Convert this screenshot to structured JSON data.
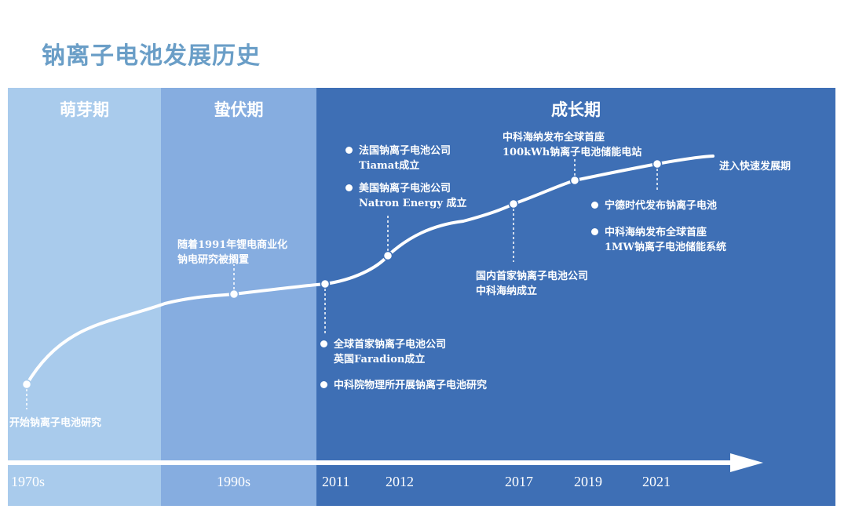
{
  "title": "钠离子电池发展历史",
  "periods": [
    {
      "name": "萌芽期"
    },
    {
      "name": "蛰伏期"
    },
    {
      "name": "成长期"
    }
  ],
  "axis_labels": [
    "1970s",
    "1990s",
    "2011",
    "2012",
    "2017",
    "2019",
    "2021"
  ],
  "events": {
    "e1970s": [
      "开始钠离子电池研究"
    ],
    "e1990s": [
      "随着1991年锂电商业化",
      "钠电研究被搁置"
    ],
    "e2011a": [
      "全球首家钠离子电池公司",
      "英国Faradion成立"
    ],
    "e2011b": [
      "中科院物理所开展钠离子电池研究"
    ],
    "e2012a": [
      "法国钠离子电池公司",
      "Tiamat成立"
    ],
    "e2012b": [
      "美国钠离子电池公司",
      "Natron Energy 成立"
    ],
    "e2017": [
      "国内首家钠离子电池公司",
      "中科海纳成立"
    ],
    "e2019": [
      "中科海纳发布全球首座",
      "100kWh钠离子电池储能电站"
    ],
    "e2021a": [
      "宁德时代发布钠离子电池"
    ],
    "e2021b": [
      "中科海纳发布全球首座",
      "1MW钠离子电池储能系统"
    ],
    "future": [
      "进入快速发展期"
    ]
  }
}
